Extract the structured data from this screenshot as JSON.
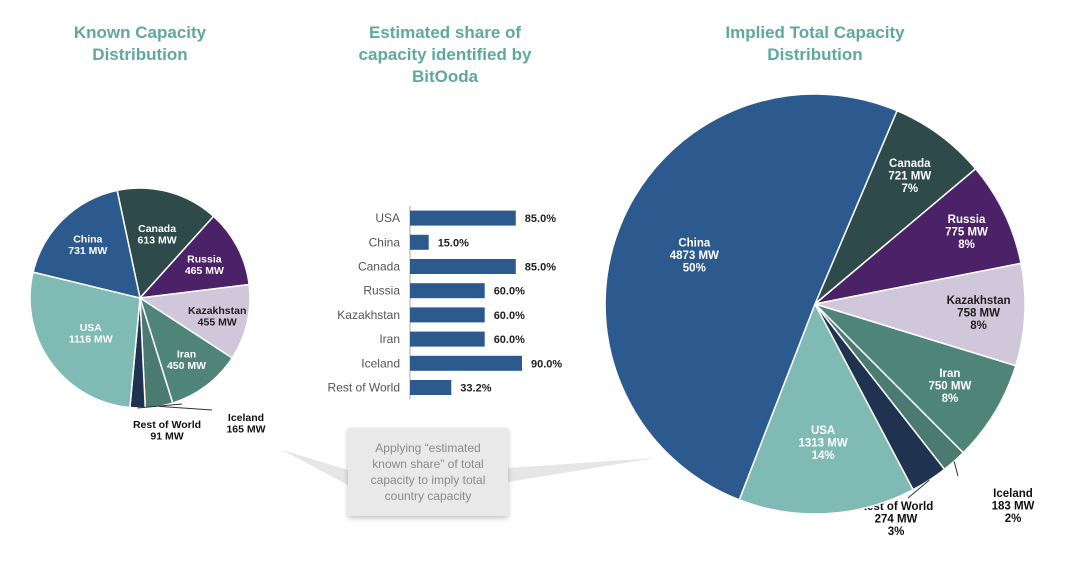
{
  "titles": {
    "left": "Known Capacity Distribution",
    "middle": "Estimated share of capacity identified by BitOoda",
    "right": "Implied Total Capacity Distribution"
  },
  "callout": {
    "text": "Applying “estimated known share” of total capacity to imply total country capacity"
  },
  "colors": {
    "China": "#2c5a8f",
    "Canada": "#2f4a4a",
    "Russia": "#4b2168",
    "Kazakhstan": "#d0c8da",
    "Iran": "#4f8478",
    "Iceland": "#4a7a70",
    "Rest of World": "#1f3350",
    "USA": "#7fbab5",
    "bar": "#2c5a8f",
    "title": "#5fa8a0"
  },
  "chart_data": [
    {
      "type": "pie",
      "title": "Known Capacity Distribution",
      "slices": [
        {
          "label": "Canada",
          "value_label": "613 MW",
          "value": 613
        },
        {
          "label": "Russia",
          "value_label": "465 MW",
          "value": 465
        },
        {
          "label": "Kazakhstan",
          "value_label": "455 MW",
          "value": 455
        },
        {
          "label": "Iran",
          "value_label": "450 MW",
          "value": 450
        },
        {
          "label": "Iceland",
          "value_label": "165 MW",
          "value": 165
        },
        {
          "label": "Rest of World",
          "value_label": "91 MW",
          "value": 91
        },
        {
          "label": "USA",
          "value_label": "1116 MW",
          "value": 1116
        },
        {
          "label": "China",
          "value_label": "731 MW",
          "value": 731
        }
      ]
    },
    {
      "type": "bar",
      "title": "Estimated share of capacity identified by BitOoda",
      "orientation": "horizontal",
      "categories": [
        "USA",
        "China",
        "Canada",
        "Russia",
        "Kazakhstan",
        "Iran",
        "Iceland",
        "Rest of World"
      ],
      "values": [
        85.0,
        15.0,
        85.0,
        60.0,
        60.0,
        60.0,
        90.0,
        33.2
      ],
      "value_labels": [
        "85.0%",
        "15.0%",
        "85.0%",
        "60.0%",
        "60.0%",
        "60.0%",
        "90.0%",
        "33.2%"
      ],
      "xlim": [
        0,
        90
      ]
    },
    {
      "type": "pie",
      "title": "Implied Total Capacity Distribution",
      "slices": [
        {
          "label": "Canada",
          "value_label": "721 MW",
          "pct_label": "7%",
          "value": 721
        },
        {
          "label": "Russia",
          "value_label": "775 MW",
          "pct_label": "8%",
          "value": 775
        },
        {
          "label": "Kazakhstan",
          "value_label": "758 MW",
          "pct_label": "8%",
          "value": 758
        },
        {
          "label": "Iran",
          "value_label": "750 MW",
          "pct_label": "8%",
          "value": 750
        },
        {
          "label": "Iceland",
          "value_label": "183 MW",
          "pct_label": "2%",
          "value": 183
        },
        {
          "label": "Rest of World",
          "value_label": "274 MW",
          "pct_label": "3%",
          "value": 274
        },
        {
          "label": "USA",
          "value_label": "1313 MW",
          "pct_label": "14%",
          "value": 1313
        },
        {
          "label": "China",
          "value_label": "4873 MW",
          "pct_label": "50%",
          "value": 4873
        }
      ]
    }
  ]
}
